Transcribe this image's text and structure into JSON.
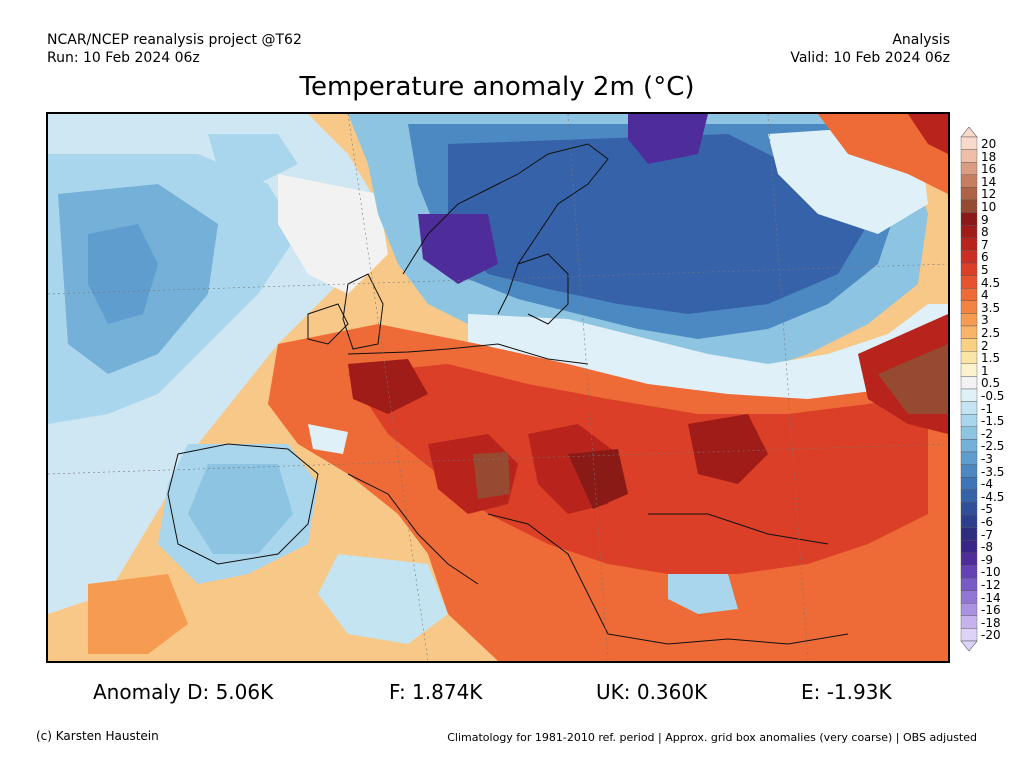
{
  "header": {
    "source": "NCAR/NCEP reanalysis project @T62",
    "run": "Run: 10 Feb 2024 06z",
    "kind": "Analysis",
    "valid": "Valid: 10 Feb 2024 06z"
  },
  "title": "Temperature anomaly 2m (°C)",
  "stats": {
    "d": "Anomaly D: 5.06K",
    "f": "F: 1.874K",
    "uk": "UK: 0.360K",
    "e": "E: -1.93K"
  },
  "footer": {
    "credit": "(c) Karsten Haustein",
    "climatology": "Climatology for 1981-2010 ref. period | Approx. grid box anomalies (very coarse) | OBS adjusted"
  },
  "colorbar": {
    "labels": [
      "20",
      "18",
      "16",
      "14",
      "12",
      "10",
      "9",
      "8",
      "7",
      "6",
      "5",
      "4.5",
      "4",
      "3.5",
      "3",
      "2.5",
      "2",
      "1.5",
      "1",
      "0.5",
      "-0.5",
      "-1",
      "-1.5",
      "-2",
      "-2.5",
      "-3",
      "-3.5",
      "-4",
      "-4.5",
      "-5",
      "-6",
      "-7",
      "-8",
      "-9",
      "-10",
      "-12",
      "-14",
      "-16",
      "-18",
      "-20"
    ],
    "colors": [
      "#f9d9c9",
      "#efbea6",
      "#dc9c80",
      "#c77e60",
      "#ae6246",
      "#964a32",
      "#8a1a16",
      "#a01c18",
      "#b8231c",
      "#cb2f22",
      "#dc3f27",
      "#e6532e",
      "#ee6a36",
      "#f38342",
      "#f69c52",
      "#f8b468",
      "#fad083",
      "#fbe5a6",
      "#fcf2cc",
      "#f2f2f2",
      "#dff0f8",
      "#c4e4f2",
      "#a9d6ec",
      "#8dc4e2",
      "#74b0d7",
      "#5e9dcd",
      "#4c89c2",
      "#3f75b6",
      "#3662a9",
      "#2f4f9b",
      "#2c3f8e",
      "#2e2e80",
      "#3a2487",
      "#4e2d9b",
      "#6442b3",
      "#7a5ac6",
      "#9375d6",
      "#ac93e2",
      "#c6b3ee",
      "#ddd2f7"
    ]
  }
}
